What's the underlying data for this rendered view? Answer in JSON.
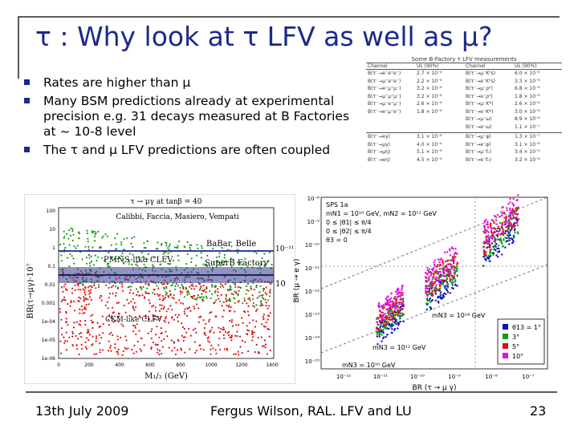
{
  "slide": {
    "title": "τ : Why look at τ LFV as well as μ?",
    "bullets": [
      {
        "text": "Rates are higher than μ"
      },
      {
        "text": "Many BSM predictions already at experimental precision e.g. 31 decays measured at B Factories at ~ 10-8 level"
      },
      {
        "text": "The τ and μ LFV predictions are often coupled"
      }
    ],
    "footer": {
      "date": "13th July 2009",
      "author": "Fergus Wilson, RAL. LFV and LU",
      "page": "23"
    }
  },
  "table": {
    "title": "Some B-Factory τ LFV measurements",
    "headers": [
      "Channel",
      "UL (90%)",
      "Channel",
      "UL (90%)"
    ],
    "rows": [
      [
        "B(τ⁻→e⁻e⁺e⁻)",
        "2.7 × 10⁻⁸",
        "B(τ⁻→μ⁻K⁰s)",
        "6.0 × 10⁻⁸"
      ],
      [
        "B(τ⁻→μ⁻e⁺e⁻)",
        "2.2 × 10⁻⁸",
        "B(τ⁻→e⁻K⁰s)",
        "3.3 × 10⁻⁸"
      ],
      [
        "B(τ⁻→e⁻μ⁺μ⁻)",
        "3.2 × 10⁻⁸",
        "B(τ⁻→μ⁻ρ⁰)",
        "6.8 × 10⁻⁸"
      ],
      [
        "B(τ⁻→μ⁻μ⁺μ⁻)",
        "3.2 × 10⁻⁸",
        "B(τ⁻→e⁻ρ⁰)",
        "1.8 × 10⁻⁸"
      ],
      [
        "B(τ⁻→μ⁻e⁺μ⁻)",
        "2.6 × 10⁻⁸",
        "B(τ⁻→μ⁻K*)",
        "2.6 × 10⁻⁸"
      ],
      [
        "B(τ⁻→e⁻μ⁺e⁻)",
        "1.8 × 10⁻⁸",
        "B(τ⁻→e⁻K*)",
        "3.0 × 10⁻⁸"
      ],
      [
        "",
        "",
        "B(τ⁻→μ⁻ω)",
        "8.9 × 10⁻⁸"
      ],
      [
        "",
        "",
        "B(τ⁻→e⁻ω)",
        "1.1 × 10⁻⁷"
      ],
      [
        "B(τ⁻→eγ)",
        "3.1 × 10⁻⁸",
        "B(τ⁻→μ⁻φ)",
        "1.3 × 10⁻⁷"
      ],
      [
        "B(τ⁻→μγ)",
        "4.0 × 10⁻⁸",
        "B(τ⁻→e⁻φ)",
        "3.1 × 10⁻⁸"
      ],
      [
        "B(τ⁻→μη)",
        "5.1 × 10⁻⁸",
        "B(τ⁻→μ⁻f₀)",
        "3.4 × 10⁻⁸"
      ],
      [
        "B(τ⁻→eη)",
        "4.5 × 10⁻⁸",
        "B(τ⁻→e⁻f₀)",
        "3.2 × 10⁻⁸"
      ]
    ]
  },
  "left_plot": {
    "title": "τ → μγ at tanβ = 40",
    "authors": "Calibbi, Faccia, Masiero, Vempati",
    "ylabel": "BR(τ→μγ)·10⁷",
    "xlabel": "M₁/₂ (GeV)",
    "y_ticks": [
      "100",
      "10",
      "1",
      "0.1",
      "0.01",
      "0.001",
      "1e-04",
      "1e-05",
      "1e-06"
    ],
    "x_ticks": [
      "0",
      "200",
      "400",
      "600",
      "800",
      "1000",
      "1200",
      "1400"
    ],
    "labels": {
      "babar_belle": "BaBar, Belle",
      "superb": "SuperB Factory",
      "pmns": "PMNS-like CLFV",
      "ckm": "CKM-like CLFV",
      "meg": "10⁻¹¹",
      "meg2": "10"
    },
    "colors": {
      "pmns": "#1a9a1a",
      "ckm": "#e01010",
      "band": "#4a4aa0"
    }
  },
  "right_plot": {
    "legend_lines": [
      "SPS 1a",
      "mN1 = 10¹⁰ GeV, mN2 = 10¹¹ GeV",
      "0 ≤ |θ1| ≤ π/4",
      "0 ≤ |θ2| ≤ π/4",
      "θ3 = 0"
    ],
    "ylabel": "BR (μ → e γ)",
    "xlabel": "BR (τ → μ γ)",
    "y_ticks": [
      "10⁻⁸",
      "10⁻⁹",
      "10⁻¹⁰",
      "10⁻¹¹",
      "10⁻¹²",
      "10⁻¹³",
      "10⁻¹⁴",
      "10⁻¹⁵"
    ],
    "x_ticks": [
      "10⁻¹²",
      "10⁻¹¹",
      "10⁻¹⁰",
      "10⁻⁹",
      "10⁻⁸",
      "10⁻⁷"
    ],
    "mass_labels": [
      "mN3 = 10¹⁴ GeV",
      "mN3 = 10¹² GeV",
      "mN3 = 10¹⁰ GeV"
    ],
    "theta_legend": [
      {
        "label": "θ13 = 1°",
        "color": "#1010c0"
      },
      {
        "label": "3°",
        "color": "#10a010"
      },
      {
        "label": "5°",
        "color": "#e01010"
      },
      {
        "label": "10°",
        "color": "#e010e0"
      }
    ]
  }
}
